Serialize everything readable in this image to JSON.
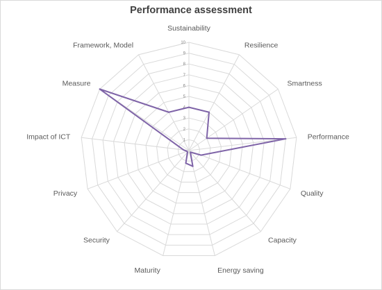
{
  "chart_data": {
    "type": "radar",
    "title": "Performance assessment",
    "categories": [
      "Sustainability",
      "Resilience",
      "Smartness",
      "Performance",
      "Quality",
      "Capacity",
      "Energy saving",
      "Maturity",
      "Security",
      "Privacy",
      "Impact of ICT",
      "Measure",
      "Framework, Model"
    ],
    "series": [
      {
        "values": [
          4,
          4,
          2,
          9,
          1.2,
          0.2,
          1.5,
          1.2,
          0.2,
          0.2,
          0.5,
          10,
          4
        ],
        "color": "#7f64a8"
      }
    ],
    "rlim": [
      0,
      10
    ],
    "ticks": [
      "",
      "1",
      "2",
      "3",
      "4",
      "5",
      "6",
      "7",
      "8",
      "9",
      "10"
    ],
    "grid": true,
    "legend": "none",
    "colors": {
      "grid": "#d9d9d9",
      "series": "#7f64a8",
      "text": "#595959"
    }
  }
}
